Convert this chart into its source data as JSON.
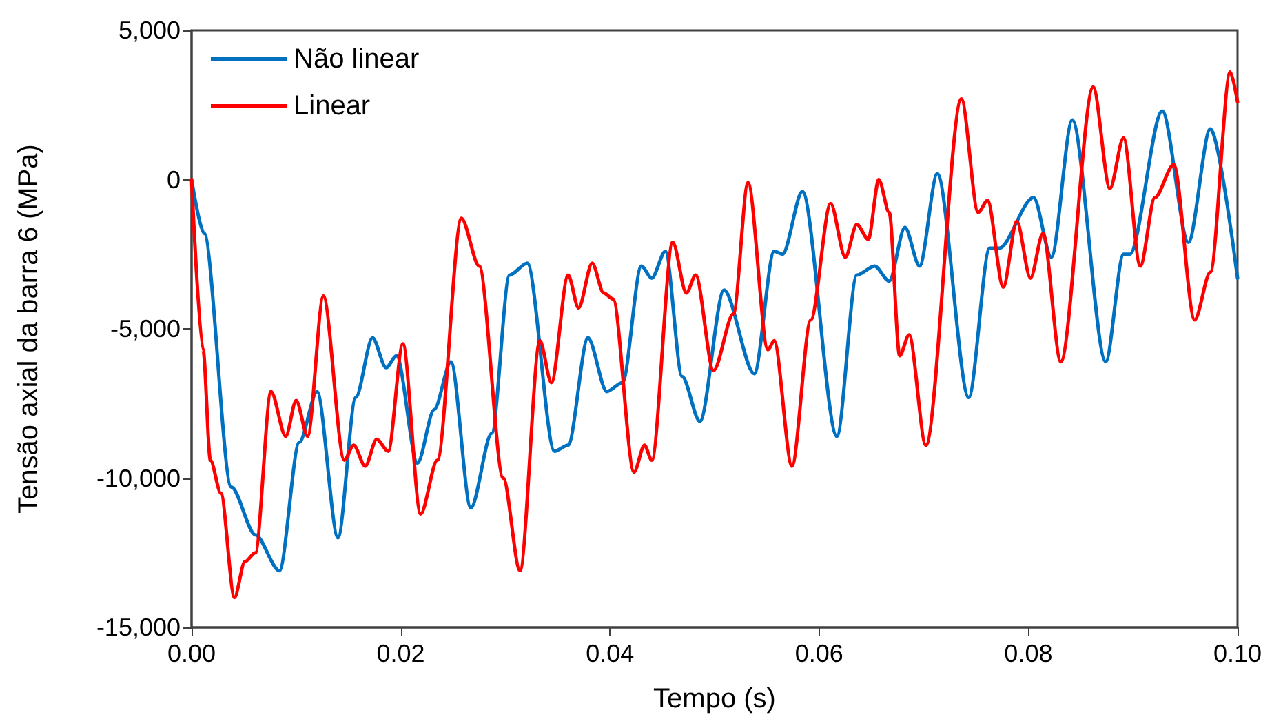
{
  "chart_data": {
    "type": "line",
    "xlabel": "Tempo (s)",
    "ylabel": "Tensão axial da barra 6 (MPa)",
    "xlim": [
      0,
      0.1
    ],
    "xticks": [
      {
        "value": 0,
        "label": "0.00"
      },
      {
        "value": 0.02,
        "label": "0.02"
      },
      {
        "value": 0.04,
        "label": "0.04"
      },
      {
        "value": 0.06,
        "label": "0.06"
      },
      {
        "value": 0.08,
        "label": "0.08"
      },
      {
        "value": 0.1,
        "label": "0.10"
      }
    ],
    "ylim": [
      -15000,
      5000
    ],
    "yticks": [
      {
        "value": -15000,
        "label": "-15,000"
      },
      {
        "value": -10000,
        "label": "-10,000"
      },
      {
        "value": -5000,
        "label": "-5,000"
      },
      {
        "value": 0,
        "label": "0"
      },
      {
        "value": 5000,
        "label": "5,000"
      }
    ],
    "grid": false,
    "legend": "top left",
    "marker": "none",
    "line_style": "solid",
    "series": [
      {
        "name": "Não linear",
        "color": "#0070c0",
        "x": [
          0,
          0.0012,
          0.0038,
          0.0061,
          0.0084,
          0.0103,
          0.012,
          0.014,
          0.0157,
          0.0173,
          0.0186,
          0.0196,
          0.0216,
          0.0232,
          0.0248,
          0.0267,
          0.0287,
          0.0304,
          0.0321,
          0.0347,
          0.036,
          0.0379,
          0.0397,
          0.0412,
          0.043,
          0.044,
          0.0453,
          0.0469,
          0.0486,
          0.0509,
          0.0538,
          0.0557,
          0.0565,
          0.0584,
          0.0617,
          0.0636,
          0.0653,
          0.0667,
          0.0682,
          0.0696,
          0.0713,
          0.0743,
          0.0763,
          0.0772,
          0.0805,
          0.0822,
          0.0842,
          0.0874,
          0.0891,
          0.0897,
          0.0928,
          0.0953,
          0.0974,
          0.1
        ],
        "values": [
          0,
          -1800,
          -10300,
          -11900,
          -13100,
          -8800,
          -7100,
          -12000,
          -7300,
          -5300,
          -6300,
          -5900,
          -9500,
          -7700,
          -6100,
          -11000,
          -8500,
          -3200,
          -2800,
          -9100,
          -8900,
          -5300,
          -7100,
          -6800,
          -2900,
          -3300,
          -2400,
          -6600,
          -8100,
          -3700,
          -6500,
          -2400,
          -2500,
          -400,
          -8600,
          -3200,
          -2900,
          -3400,
          -1600,
          -2900,
          200,
          -7300,
          -2300,
          -2300,
          -600,
          -2600,
          2000,
          -6100,
          -2500,
          -2500,
          2300,
          -2100,
          1700,
          -3300
        ]
      },
      {
        "name": "Linear",
        "color": "#ff0000",
        "x": [
          0,
          0.0011,
          0.0018,
          0.0028,
          0.0041,
          0.0051,
          0.0061,
          0.0076,
          0.009,
          0.01,
          0.0111,
          0.0126,
          0.0146,
          0.0155,
          0.0166,
          0.0177,
          0.0188,
          0.0202,
          0.0219,
          0.0235,
          0.0258,
          0.0275,
          0.0298,
          0.0314,
          0.0333,
          0.0344,
          0.036,
          0.037,
          0.0383,
          0.0394,
          0.0403,
          0.0423,
          0.0433,
          0.044,
          0.046,
          0.0473,
          0.0482,
          0.0499,
          0.0518,
          0.0532,
          0.0551,
          0.0557,
          0.0574,
          0.0592,
          0.0611,
          0.0625,
          0.0636,
          0.0647,
          0.0657,
          0.0667,
          0.0677,
          0.0686,
          0.0702,
          0.0736,
          0.0752,
          0.0761,
          0.0776,
          0.0789,
          0.0802,
          0.0814,
          0.0831,
          0.0862,
          0.0878,
          0.0891,
          0.0907,
          0.0921,
          0.0939,
          0.0959,
          0.0974,
          0.0993,
          0.1
        ],
        "values": [
          0,
          -5700,
          -9400,
          -10500,
          -14000,
          -12800,
          -12500,
          -7100,
          -8600,
          -7400,
          -8600,
          -3900,
          -9400,
          -8900,
          -9600,
          -8700,
          -9100,
          -5500,
          -11200,
          -9400,
          -1300,
          -2900,
          -10000,
          -13100,
          -5400,
          -6800,
          -3200,
          -4300,
          -2800,
          -3800,
          -4000,
          -9800,
          -8900,
          -9400,
          -2100,
          -3800,
          -3200,
          -6400,
          -4500,
          -100,
          -5700,
          -5400,
          -9600,
          -4700,
          -800,
          -2600,
          -1500,
          -2000,
          0,
          -1100,
          -5900,
          -5200,
          -8900,
          2700,
          -1100,
          -700,
          -3600,
          -1400,
          -3300,
          -1800,
          -6100,
          3100,
          -300,
          1400,
          -2900,
          -600,
          500,
          -4700,
          -3100,
          3600,
          2600
        ]
      }
    ]
  }
}
